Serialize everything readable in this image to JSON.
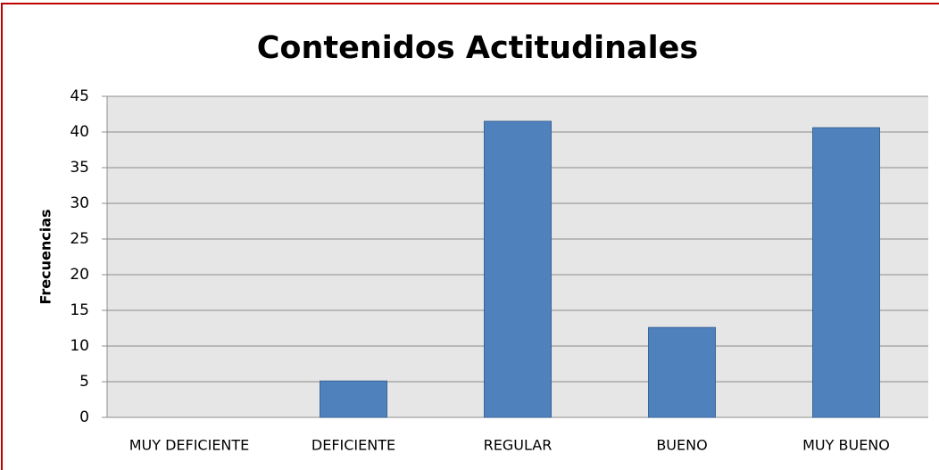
{
  "chart_data": {
    "type": "bar",
    "title": "Contenidos Actitudinales",
    "y_label": "Frecuencias",
    "categories": [
      "MUY DEFICIENTE",
      "DEFICIENTE",
      "REGULAR",
      "BUENO",
      "MUY BUENO"
    ],
    "values": [
      0,
      5.1,
      41.5,
      12.6,
      40.6
    ],
    "color": "#4f81bd",
    "ylim": [
      0,
      45
    ],
    "yticks": [
      0,
      5,
      10,
      15,
      20,
      25,
      30,
      35,
      40,
      45
    ],
    "grid": true
  }
}
